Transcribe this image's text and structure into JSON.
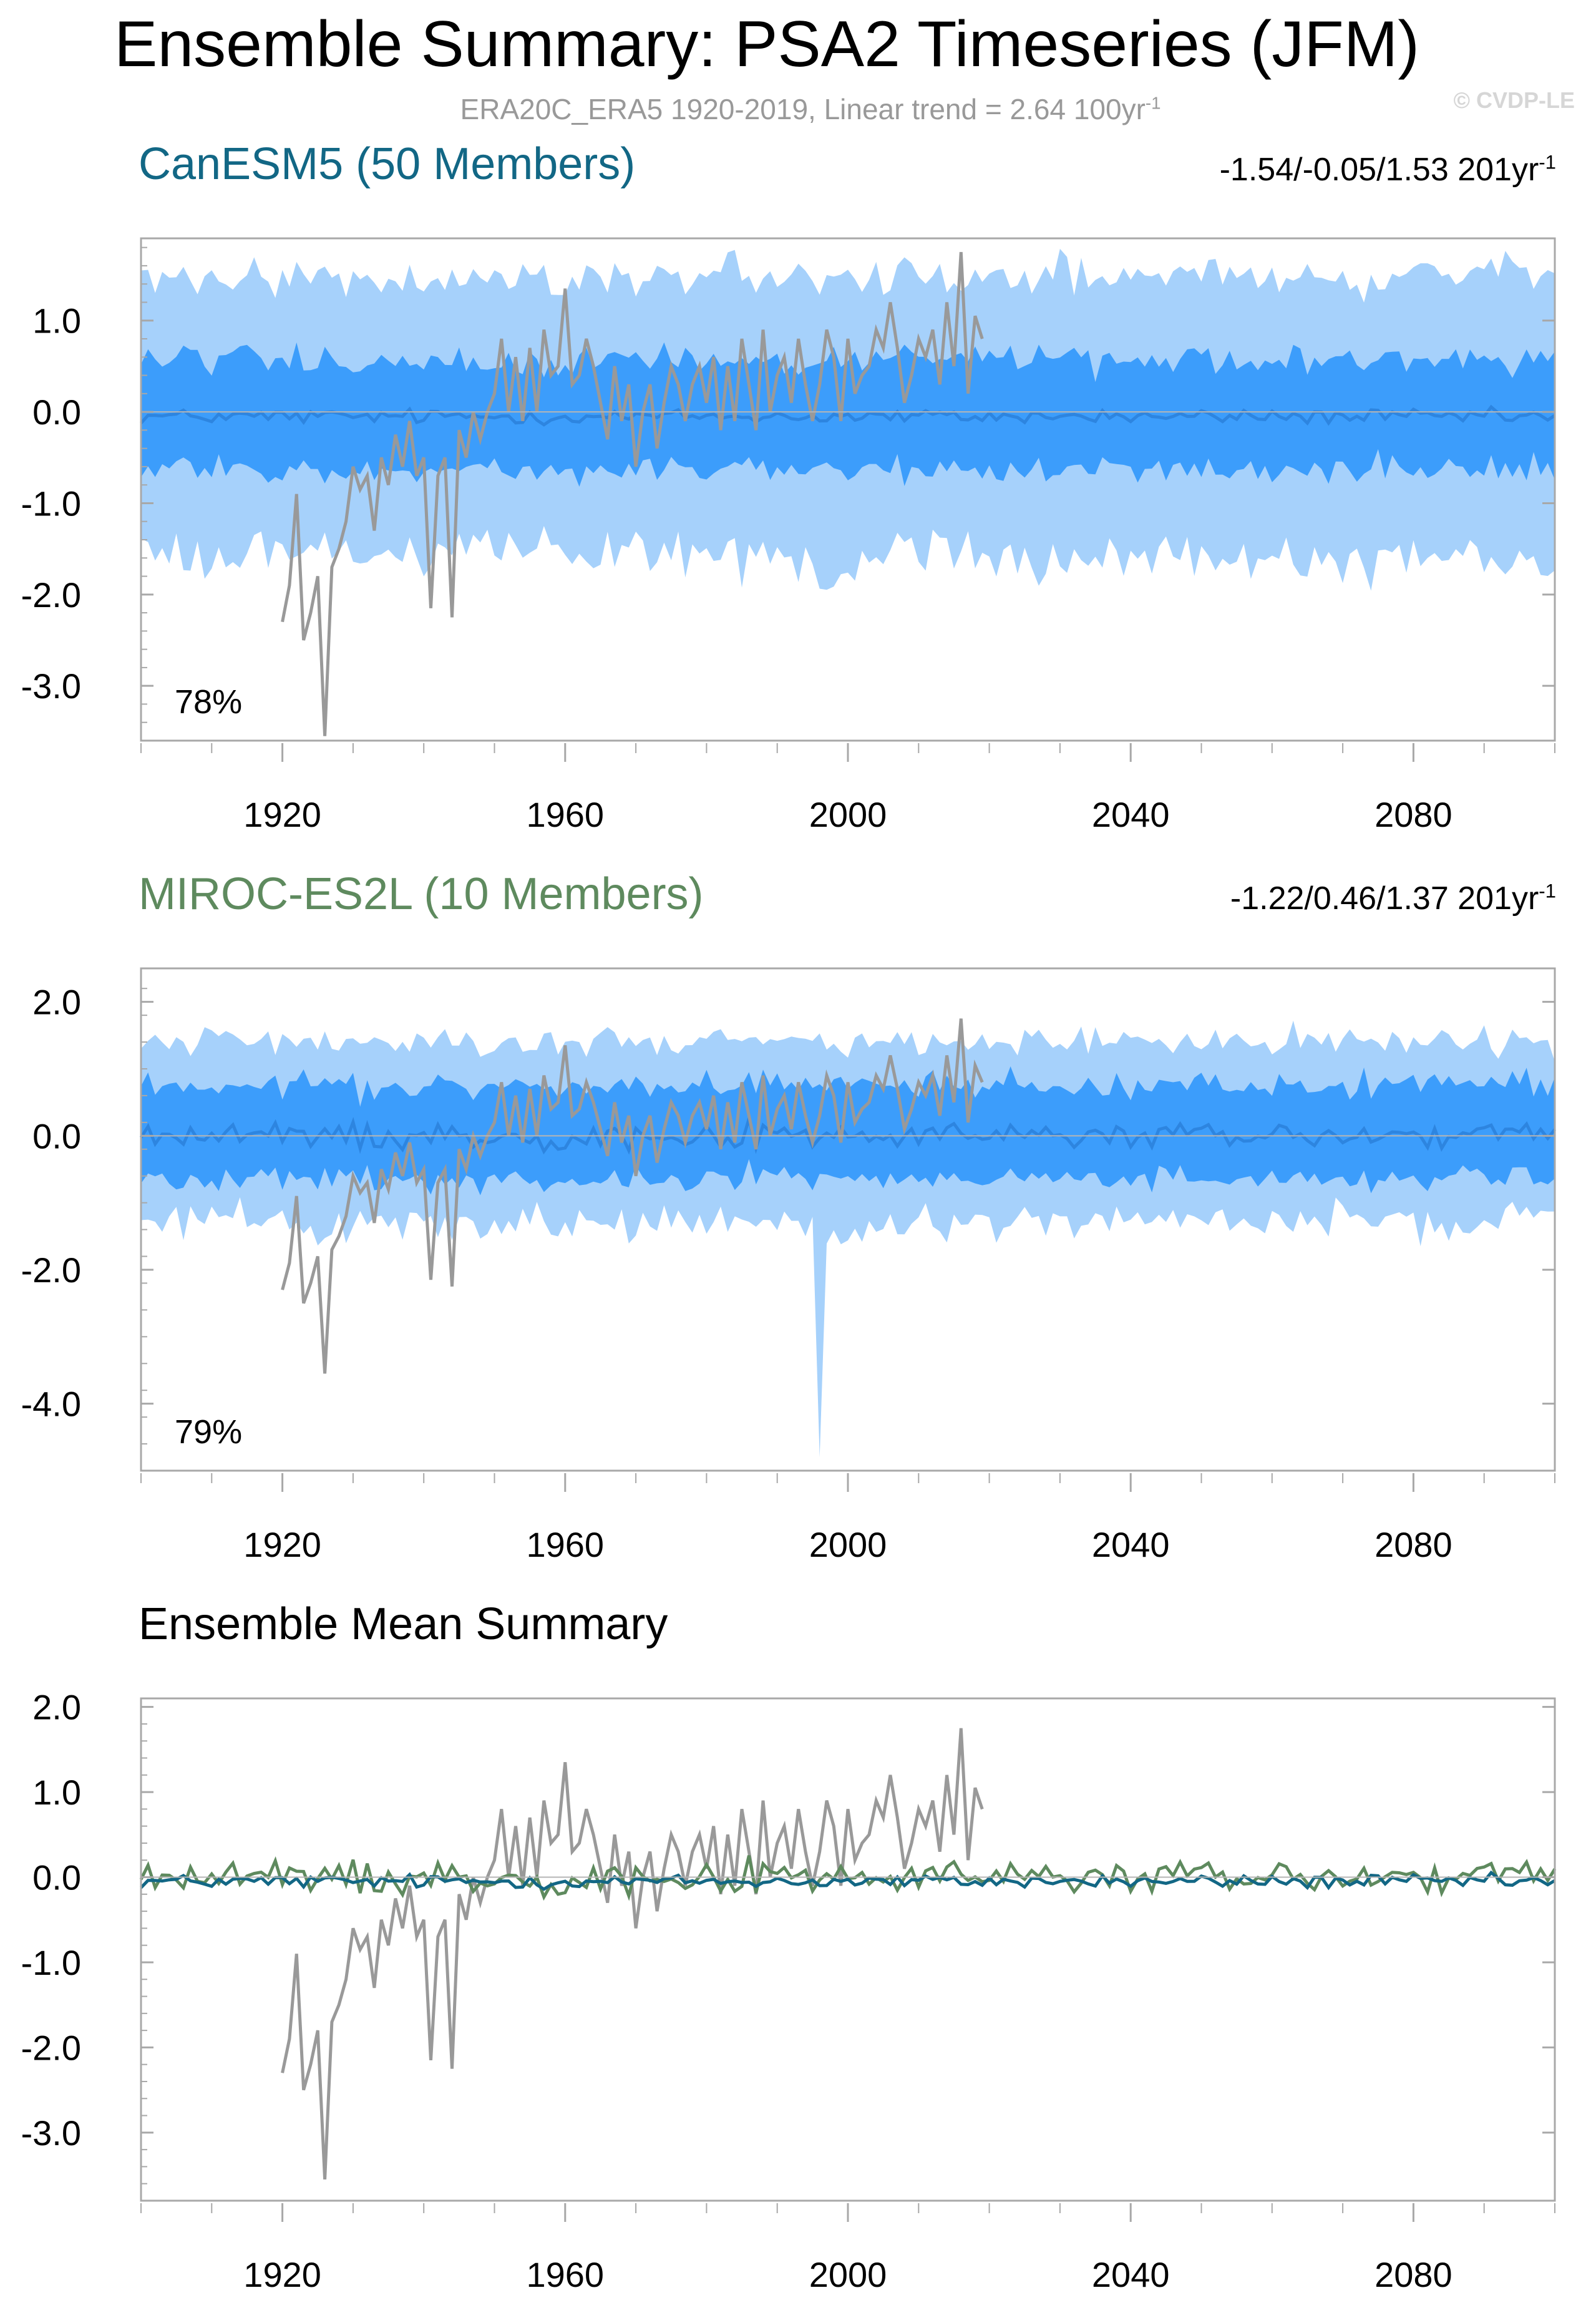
{
  "title": "Ensemble Summary: PSA2 Timeseries (JFM)",
  "subtitle_main": "ERA20C_ERA5 1920-2019, Linear trend = 2.64 100yr",
  "subtitle_sup": "-1",
  "watermark": "© CVDP-LE",
  "colors": {
    "spread_outer": "#a6d1fb",
    "spread_inner": "#3c9dfb",
    "ens_mean": "#2d85e0",
    "observed": "#999999",
    "canesm5": "#126785",
    "miroc": "#5e8a5e",
    "frame": "#a8a8a8"
  },
  "panels": [
    {
      "title": "CanESM5 (50 Members)",
      "range_text": "-1.54/-0.05/1.53 201yr",
      "range_sup": "-1",
      "percent_label": "78%"
    },
    {
      "title": "MIROC-ES2L (10 Members)",
      "range_text": "-1.22/0.46/1.37 201yr",
      "range_sup": "-1",
      "percent_label": "79%"
    },
    {
      "title": "Ensemble Mean Summary"
    }
  ],
  "chart_data": [
    {
      "type": "area",
      "title": "CanESM5 (50 Members)",
      "x_range": [
        1900,
        2100
      ],
      "x_ticks": [
        "1920",
        "1960",
        "2000",
        "2040",
        "2080"
      ],
      "x_tick_values": [
        1920,
        1960,
        2000,
        2040,
        2080
      ],
      "y_ticks": [
        "1.0",
        "0.0",
        "-1.0",
        "-2.0",
        "-3.0"
      ],
      "y_tick_values": [
        1.0,
        0.0,
        -1.0,
        -2.0,
        -3.0
      ],
      "ylim": [
        -3.6,
        1.9
      ],
      "series": [
        {
          "name": "ensemble range (min/max)",
          "kind": "band",
          "lo": -1.6,
          "hi": 1.5
        },
        {
          "name": "ensemble 10th-90th percentile",
          "kind": "band",
          "lo": -0.6,
          "hi": 0.6
        },
        {
          "name": "ensemble mean",
          "kind": "line",
          "approx_mean": -0.05,
          "noise": 0.12
        },
        {
          "name": "ERA20C_ERA5 observed",
          "kind": "line",
          "x_start": 1920,
          "values": [
            -2.3,
            -1.9,
            -0.9,
            -2.5,
            -2.2,
            -1.8,
            -3.55,
            -1.7,
            -1.5,
            -1.2,
            -0.6,
            -0.85,
            -0.7,
            -1.3,
            -0.5,
            -0.8,
            -0.25,
            -0.6,
            -0.1,
            -0.7,
            -0.5,
            -2.15,
            -0.7,
            -0.5,
            -2.25,
            -0.2,
            -0.5,
            0.0,
            -0.3,
            0.0,
            0.2,
            0.8,
            0.0,
            0.6,
            -0.1,
            0.7,
            0.0,
            0.9,
            0.4,
            0.5,
            1.35,
            0.3,
            0.4,
            0.8,
            0.5,
            0.1,
            -0.3,
            0.5,
            -0.1,
            0.3,
            -0.6,
            0.0,
            0.3,
            -0.4,
            0.1,
            0.5,
            0.3,
            -0.1,
            0.3,
            0.5,
            0.1,
            0.6,
            -0.2,
            0.5,
            -0.1,
            0.8,
            0.3,
            -0.2,
            0.9,
            0.0,
            0.4,
            0.6,
            0.1,
            0.8,
            0.3,
            -0.1,
            0.3,
            0.9,
            0.6,
            -0.1,
            0.8,
            0.2,
            0.4,
            0.5,
            0.9,
            0.7,
            1.2,
            0.7,
            0.1,
            0.4,
            0.8,
            0.6,
            0.9,
            0.3,
            1.2,
            0.5,
            1.75,
            0.2,
            1.05,
            0.8
          ]
        }
      ],
      "percent_label": "78%"
    },
    {
      "type": "area",
      "title": "MIROC-ES2L (10 Members)",
      "x_range": [
        1900,
        2100
      ],
      "x_ticks": [
        "1920",
        "1960",
        "2000",
        "2040",
        "2080"
      ],
      "x_tick_values": [
        1920,
        1960,
        2000,
        2040,
        2080
      ],
      "y_ticks": [
        "2.0",
        "0.0",
        "-2.0",
        "-4.0"
      ],
      "y_tick_values": [
        2.0,
        0.0,
        -2.0,
        -4.0
      ],
      "ylim": [
        -5.0,
        2.5
      ],
      "series": [
        {
          "name": "ensemble range (min/max)",
          "kind": "band",
          "lo": -1.3,
          "hi": 1.4,
          "spike": {
            "x": 1996,
            "value": -4.8
          }
        },
        {
          "name": "ensemble 10th-90th percentile",
          "kind": "band",
          "lo": -0.65,
          "hi": 0.75
        },
        {
          "name": "ensemble mean",
          "kind": "line",
          "approx_mean": 0.0,
          "noise": 0.3
        },
        {
          "name": "ERA20C_ERA5 observed",
          "kind": "line",
          "source": "same as CanESM5 panel"
        }
      ],
      "percent_label": "79%"
    },
    {
      "type": "line",
      "title": "Ensemble Mean Summary",
      "x_range": [
        1900,
        2100
      ],
      "x_ticks": [
        "1920",
        "1960",
        "2000",
        "2040",
        "2080"
      ],
      "x_tick_values": [
        1920,
        1960,
        2000,
        2040,
        2080
      ],
      "y_ticks": [
        "2.0",
        "1.0",
        "0.0",
        "-1.0",
        "-2.0",
        "-3.0"
      ],
      "y_tick_values": [
        2.0,
        1.0,
        0.0,
        -1.0,
        -2.0,
        -3.0
      ],
      "ylim": [
        -3.8,
        2.1
      ],
      "series": [
        {
          "name": "ERA20C_ERA5 observed",
          "color_key": "observed"
        },
        {
          "name": "CanESM5 ensemble mean",
          "color_key": "canesm5",
          "approx_mean": -0.05,
          "noise": 0.12
        },
        {
          "name": "MIROC-ES2L ensemble mean",
          "color_key": "miroc",
          "approx_mean": 0.0,
          "noise": 0.28
        }
      ]
    }
  ]
}
